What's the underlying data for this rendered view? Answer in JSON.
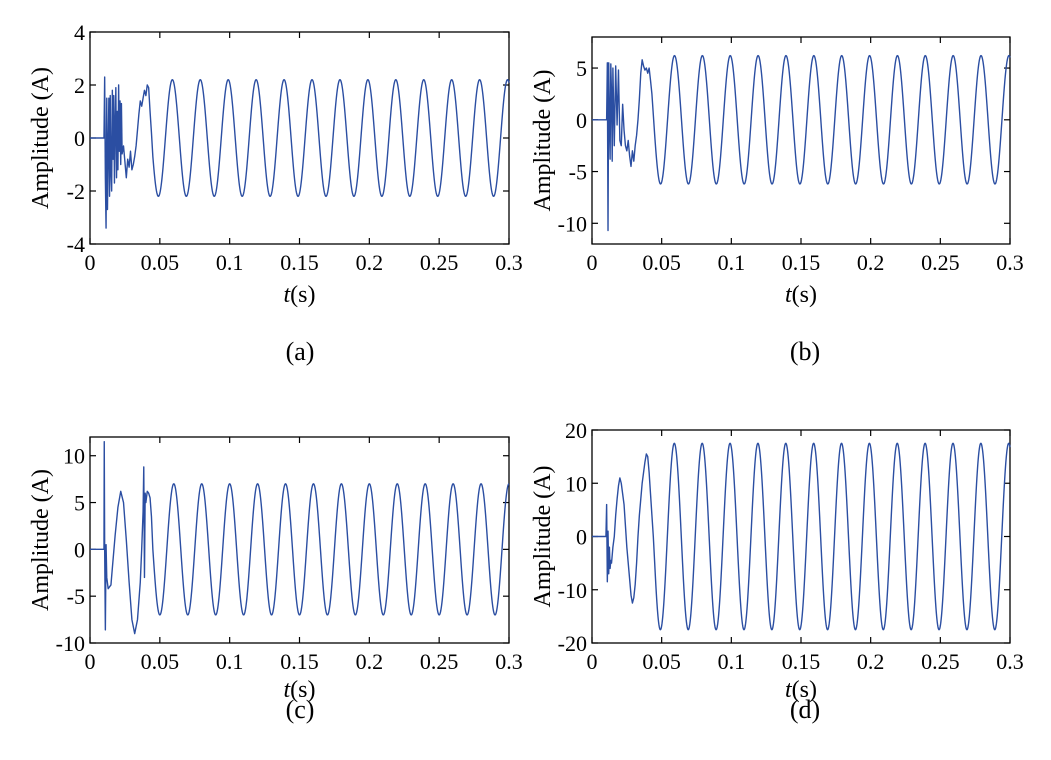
{
  "colors": {
    "line": "#2b4ea2",
    "axis": "#000000",
    "background": "#ffffff"
  },
  "chart_data": [
    {
      "type": "line",
      "caption": "(a)",
      "xlabel_italic": "t",
      "xlabel_unit": "(s)",
      "ylabel": "Amplitude (A)",
      "xlim": [
        0,
        0.3
      ],
      "ylim": [
        -4,
        4
      ],
      "xticks": [
        0,
        0.05,
        0.1,
        0.15,
        0.2,
        0.25,
        0.3
      ],
      "xtick_labels": [
        "0",
        "0.05",
        "0.1",
        "0.15",
        "0.2",
        "0.25",
        "0.3"
      ],
      "yticks": [
        -4,
        -2,
        0,
        2,
        4
      ],
      "ytick_labels": [
        "-4",
        "-2",
        "0",
        "2",
        "4"
      ],
      "grid": false,
      "series": [
        {
          "frequency_hz": 50,
          "steady_amplitude": 2.2,
          "transient_end_s": 0.045,
          "x": [
            0,
            0.01,
            0.0105,
            0.011,
            0.0115,
            0.012,
            0.0125,
            0.013,
            0.0135,
            0.014,
            0.0145,
            0.015,
            0.0155,
            0.016,
            0.0165,
            0.017,
            0.0175,
            0.018,
            0.0185,
            0.019,
            0.0195,
            0.02,
            0.0205,
            0.021,
            0.0215,
            0.022,
            0.0225,
            0.023,
            0.024,
            0.025,
            0.026,
            0.027,
            0.028,
            0.029,
            0.03,
            0.031,
            0.032,
            0.033,
            0.034,
            0.035,
            0.036,
            0.037,
            0.038,
            0.039,
            0.04,
            0.041,
            0.042,
            0.043,
            0.044,
            0.045
          ],
          "y": [
            0,
            0,
            2.3,
            -1.5,
            -3.4,
            1.5,
            -2.7,
            -0.5,
            1.5,
            -2.2,
            1.6,
            -1.3,
            -2.0,
            1.8,
            -0.8,
            1.6,
            -1.7,
            0.5,
            1.9,
            -1.5,
            1.0,
            -1.2,
            2.0,
            -0.5,
            1.4,
            -1.0,
            1.3,
            -0.6,
            -0.3,
            -0.9,
            -1.5,
            -0.8,
            -1.1,
            -0.5,
            -1.2,
            -1.0,
            -0.7,
            -0.3,
            0.3,
            0.9,
            1.4,
            1.2,
            1.5,
            1.8,
            1.6,
            2.0,
            1.9,
            1.0,
            0.2,
            -0.7
          ]
        }
      ]
    },
    {
      "type": "line",
      "caption": "(b)",
      "xlabel_italic": "t",
      "xlabel_unit": "(s)",
      "ylabel": "Amplitude (A)",
      "xlim": [
        0,
        0.3
      ],
      "ylim": [
        -12,
        8
      ],
      "xticks": [
        0,
        0.05,
        0.1,
        0.15,
        0.2,
        0.25,
        0.3
      ],
      "xtick_labels": [
        "0",
        "0.05",
        "0.1",
        "0.15",
        "0.2",
        "0.25",
        "0.3"
      ],
      "yticks": [
        -10,
        -5,
        0,
        5
      ],
      "ytick_labels": [
        "-10",
        "-5",
        "0",
        "5"
      ],
      "grid": false,
      "series": [
        {
          "frequency_hz": 50,
          "steady_amplitude": 6.2,
          "transient_end_s": 0.045,
          "x": [
            0,
            0.01,
            0.0105,
            0.011,
            0.0115,
            0.012,
            0.0125,
            0.013,
            0.0135,
            0.014,
            0.0145,
            0.015,
            0.016,
            0.017,
            0.018,
            0.019,
            0.02,
            0.021,
            0.022,
            0.023,
            0.024,
            0.025,
            0.026,
            0.027,
            0.028,
            0.029,
            0.03,
            0.031,
            0.032,
            0.033,
            0.034,
            0.035,
            0.036,
            0.037,
            0.038,
            0.039,
            0.04,
            0.041,
            0.042,
            0.043,
            0.044,
            0.045
          ],
          "y": [
            0,
            0,
            0,
            5.5,
            -10.7,
            5.5,
            0,
            -3.8,
            5.4,
            2.5,
            -4.0,
            5.0,
            -2.5,
            5.2,
            -0.5,
            4.8,
            -2.0,
            -2.5,
            1.5,
            -1.0,
            -2.5,
            -3.0,
            -2.0,
            -3.5,
            -4.5,
            -3.0,
            -4.0,
            -2.5,
            -1.5,
            0,
            2.0,
            4.5,
            5.8,
            5.2,
            4.8,
            5.0,
            4.5,
            5.0,
            3.8,
            2.5,
            0.5,
            -1.5
          ]
        }
      ]
    },
    {
      "type": "line",
      "caption": "(c)",
      "xlabel_italic": "t",
      "xlabel_unit": "(s)",
      "ylabel": "Amplitude (A)",
      "xlim": [
        0,
        0.3
      ],
      "ylim": [
        -10,
        12
      ],
      "xticks": [
        0,
        0.05,
        0.1,
        0.15,
        0.2,
        0.25,
        0.3
      ],
      "xtick_labels": [
        "0",
        "0.05",
        "0.1",
        "0.15",
        "0.2",
        "0.25",
        "0.3"
      ],
      "yticks": [
        -10,
        -5,
        0,
        5,
        10
      ],
      "ytick_labels": [
        "-10",
        "-5",
        "0",
        "5",
        "10"
      ],
      "grid": false,
      "series": [
        {
          "frequency_hz": 50,
          "steady_amplitude": 7.0,
          "transient_end_s": 0.045,
          "x": [
            0,
            0.01,
            0.0102,
            0.0105,
            0.011,
            0.0115,
            0.012,
            0.013,
            0.014,
            0.015,
            0.016,
            0.018,
            0.02,
            0.022,
            0.024,
            0.026,
            0.028,
            0.03,
            0.032,
            0.034,
            0.036,
            0.037,
            0.038,
            0.0385,
            0.039,
            0.0395,
            0.04,
            0.041,
            0.042,
            0.043,
            0.044,
            0.045
          ],
          "y": [
            0,
            0,
            11.5,
            0,
            -8.6,
            0.5,
            -3.0,
            -4.2,
            -4.0,
            -3.8,
            -2.0,
            1.5,
            4.5,
            6.2,
            5.0,
            1.0,
            -3.5,
            -7.5,
            -9.0,
            -7.5,
            -3.5,
            0,
            4.0,
            8.8,
            -3.0,
            6.0,
            5.0,
            6.2,
            6.0,
            5.5,
            3.5,
            0
          ]
        }
      ]
    },
    {
      "type": "line",
      "caption": "(d)",
      "xlabel_italic": "t",
      "xlabel_unit": "(s)",
      "ylabel": "Amplitude (A)",
      "xlim": [
        0,
        0.3
      ],
      "ylim": [
        -20,
        20
      ],
      "xticks": [
        0,
        0.05,
        0.1,
        0.15,
        0.2,
        0.25,
        0.3
      ],
      "xtick_labels": [
        "0",
        "0.05",
        "0.1",
        "0.15",
        "0.2",
        "0.25",
        "0.3"
      ],
      "yticks": [
        -20,
        -10,
        0,
        10,
        20
      ],
      "ytick_labels": [
        "-20",
        "-10",
        "0",
        "10",
        "20"
      ],
      "grid": false,
      "series": [
        {
          "frequency_hz": 50,
          "steady_amplitude": 17.5,
          "transient_end_s": 0.045,
          "x": [
            0,
            0.01,
            0.0105,
            0.011,
            0.0115,
            0.012,
            0.0125,
            0.013,
            0.0135,
            0.014,
            0.015,
            0.016,
            0.017,
            0.018,
            0.019,
            0.02,
            0.021,
            0.022,
            0.023,
            0.024,
            0.025,
            0.026,
            0.027,
            0.028,
            0.029,
            0.03,
            0.031,
            0.032,
            0.033,
            0.034,
            0.035,
            0.036,
            0.037,
            0.038,
            0.039,
            0.04,
            0.041,
            0.042,
            0.043,
            0.044,
            0.045
          ],
          "y": [
            0,
            0,
            6.0,
            -8.5,
            1.0,
            -7.0,
            -2.0,
            -6.0,
            -4.5,
            -5.0,
            -2.0,
            0,
            4.0,
            7.0,
            9.5,
            11.0,
            10.0,
            8.0,
            6.0,
            2.0,
            -2.0,
            -5.0,
            -8.0,
            -11.0,
            -12.5,
            -11.5,
            -9.0,
            -5.0,
            0,
            4.0,
            7.0,
            10.0,
            12.0,
            14.0,
            15.5,
            15.0,
            12.0,
            8.0,
            4.0,
            0,
            -5.0
          ]
        }
      ]
    }
  ]
}
